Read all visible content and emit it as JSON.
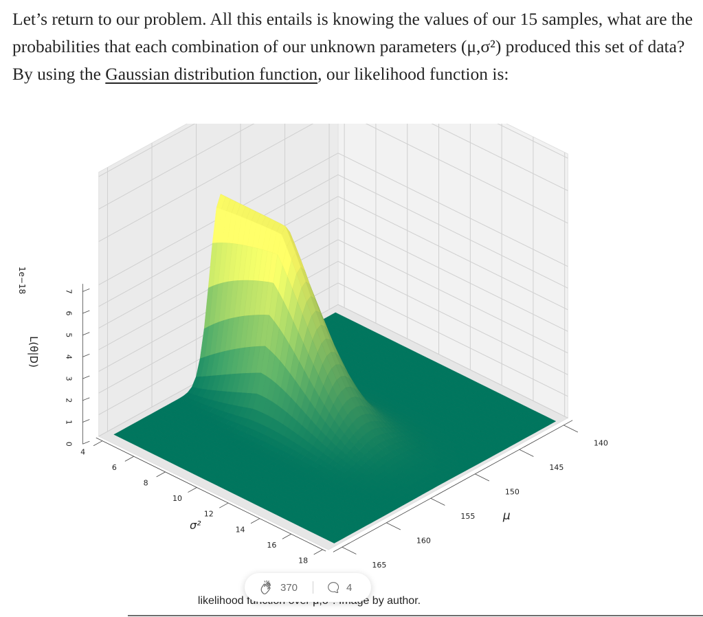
{
  "article": {
    "text_before_link": "Let’s return to our problem. All this entails is knowing the values of our 15 samples, what are the probabilities that each combination of our unknown parameters (μ,σ²) produced this set of data? By using the ",
    "link_text": "Gaussian distribution function",
    "text_after_link": ", our likelihood function is:"
  },
  "chart_data": {
    "type": "surface",
    "title": "",
    "x_axis": {
      "label": "σ²",
      "ticks": [
        "4",
        "6",
        "8",
        "10",
        "12",
        "14",
        "16",
        "18"
      ],
      "range": [
        4,
        18
      ]
    },
    "y_axis": {
      "label": "μ",
      "ticks": [
        "140",
        "145",
        "150",
        "155",
        "160",
        "165"
      ],
      "range": [
        140,
        165
      ]
    },
    "z_axis": {
      "label": "L(θ|D)",
      "offset_label": "1e−18",
      "ticks": [
        "0",
        "1",
        "2",
        "3",
        "4",
        "5",
        "6",
        "7"
      ],
      "range": [
        0,
        7
      ]
    },
    "colormap": "summer",
    "colors": {
      "low": "#008066",
      "high": "#ffff66"
    },
    "peak": {
      "sigma2": 9,
      "mu": 153,
      "value": 7.0
    },
    "grid": true
  },
  "caption": {
    "text": "likelihood function over μ,σ². Image by author."
  },
  "engagement": {
    "claps": "370",
    "responses": "4"
  }
}
